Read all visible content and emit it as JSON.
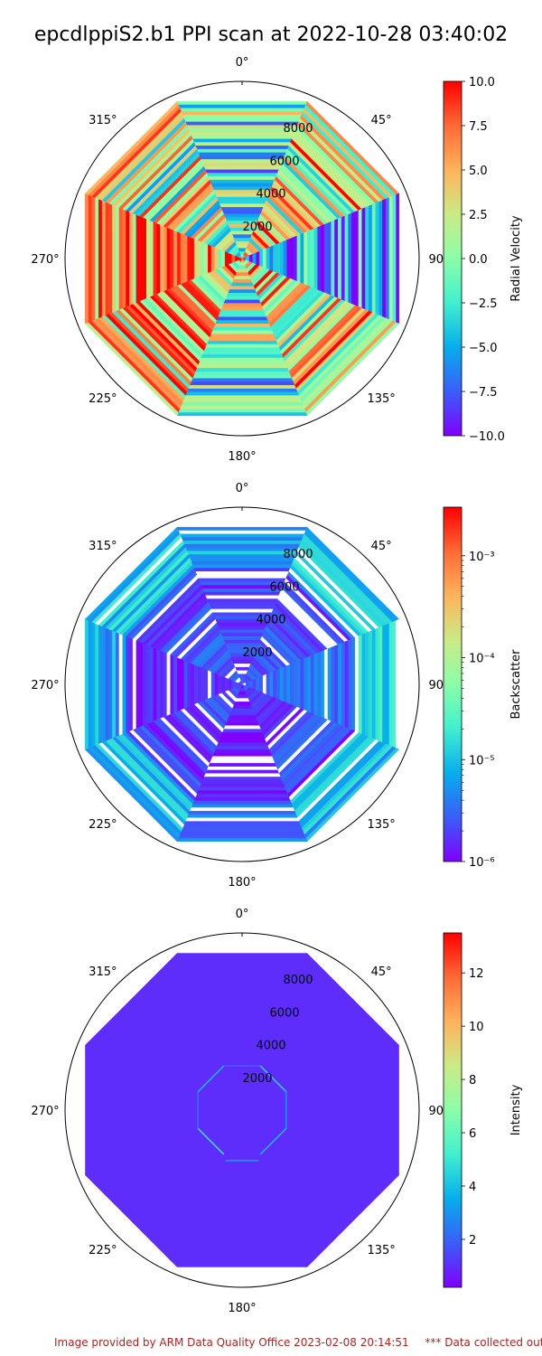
{
  "title": "epcdlppiS2.b1 PPI scan at 2022-10-28 03:40:02",
  "footer": {
    "provided": "Image provided by ARM Data Quality Office 2023-02-08 20:14:51",
    "note": "*** Data collected outside"
  },
  "colormap": [
    "#7f00ff",
    "#3a5ef9",
    "#06aeec",
    "#41f0cf",
    "#8bfea8",
    "#caeb86",
    "#ffb35c",
    "#ff6a36",
    "#ff0000"
  ],
  "chart_data": [
    {
      "type": "heatmap",
      "projection": "polar",
      "variable": "Radial Velocity",
      "colorbar_label": "Radial Velocity",
      "angle_ticks": [
        "0°",
        "45°",
        "90°",
        "135°",
        "180°",
        "225°",
        "270°",
        "315°"
      ],
      "range_ticks": [
        2000,
        4000,
        6000,
        8000
      ],
      "range_max": 10000,
      "rings": [
        8000,
        9600
      ],
      "clim": [
        -10,
        10
      ],
      "colorbar_ticks": [
        10.0,
        7.5,
        5.0,
        2.5,
        0.0,
        -2.5,
        -5.0,
        -7.5,
        -10.0
      ],
      "colorbar_tick_labels": [
        "10.0",
        "7.5",
        "5.0",
        "2.5",
        "0.0",
        "−2.5",
        "−5.0",
        "−7.5",
        "−10.0"
      ],
      "colorbar_scale": "linear",
      "description_pattern": "noisy",
      "sector_means": [
        -2.5,
        3.5,
        -6.5,
        3.0,
        -1.0,
        4.5,
        6.5,
        1.5
      ],
      "spread": 7.5
    },
    {
      "type": "heatmap",
      "projection": "polar",
      "variable": "Backscatter",
      "colorbar_label": "Backscatter",
      "angle_ticks": [
        "0°",
        "45°",
        "90°",
        "135°",
        "180°",
        "225°",
        "270°",
        "315°"
      ],
      "range_ticks": [
        2000,
        4000,
        6000,
        8000
      ],
      "range_max": 10000,
      "rings": [
        2200,
        4400,
        6600,
        8000,
        9600
      ],
      "clim": [
        1e-06,
        0.003
      ],
      "colorbar_ticks": [
        0.001,
        0.0001,
        1e-05,
        1e-06
      ],
      "colorbar_tick_labels": [
        "10⁻³",
        "10⁻⁴",
        "10⁻⁵",
        "10⁻⁶"
      ],
      "colorbar_scale": "log",
      "sector_means": [
        -5.7,
        -5.6,
        -5.5,
        -5.7,
        -5.9,
        -5.7,
        -5.8,
        -5.6
      ],
      "spread": 0.6
    },
    {
      "type": "heatmap",
      "projection": "polar",
      "variable": "Intensity",
      "colorbar_label": "Intensity",
      "angle_ticks": [
        "0°",
        "45°",
        "90°",
        "135°",
        "180°",
        "225°",
        "270°",
        "315°"
      ],
      "range_ticks": [
        2000,
        4000,
        6000,
        8000
      ],
      "range_max": 10000,
      "rings": [
        2700,
        9600
      ],
      "clim": [
        0.2,
        13.5
      ],
      "colorbar_ticks": [
        12,
        10,
        8,
        6,
        4,
        2
      ],
      "colorbar_tick_labels": [
        "12",
        "10",
        "8",
        "6",
        "4",
        "2"
      ],
      "colorbar_scale": "linear",
      "background_value": 1.0,
      "highlight_ring": 2700,
      "highlight_values": [
        2.0,
        4.5,
        3.0,
        4.0,
        3.5,
        5.0,
        2.5,
        4.0
      ]
    }
  ]
}
